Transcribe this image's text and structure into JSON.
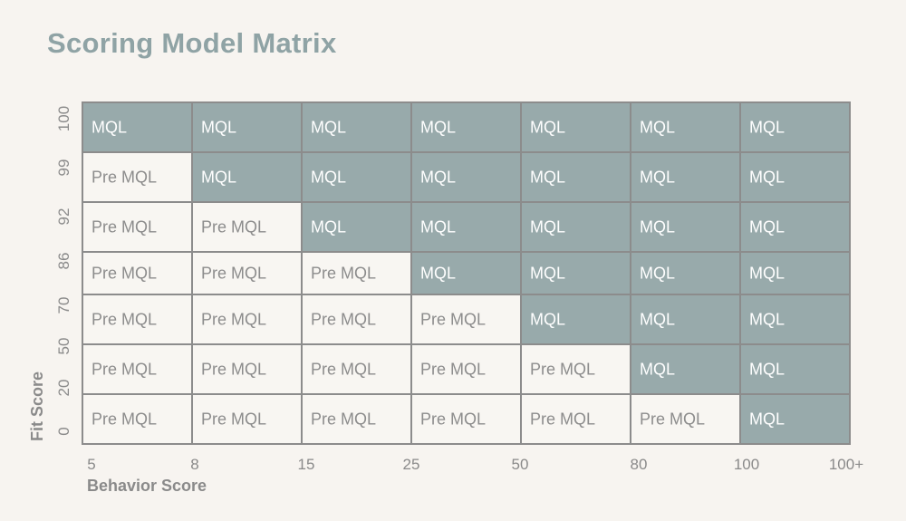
{
  "title": "Scoring Model Matrix",
  "chart_data": {
    "type": "heatmap",
    "title": "Scoring Model Matrix",
    "xlabel": "Behavior Score",
    "ylabel": "Fit Score",
    "x_ticks": [
      "5",
      "8",
      "15",
      "25",
      "50",
      "80",
      "100",
      "100+"
    ],
    "y_ticks": [
      "100",
      "99",
      "92",
      "86",
      "70",
      "50",
      "20",
      "0"
    ],
    "rows": [
      [
        "MQL",
        "MQL",
        "MQL",
        "MQL",
        "MQL",
        "MQL",
        "MQL"
      ],
      [
        "Pre MQL",
        "MQL",
        "MQL",
        "MQL",
        "MQL",
        "MQL",
        "MQL"
      ],
      [
        "Pre MQL",
        "Pre MQL",
        "MQL",
        "MQL",
        "MQL",
        "MQL",
        "MQL"
      ],
      [
        "Pre MQL",
        "Pre MQL",
        "Pre MQL",
        "MQL",
        "MQL",
        "MQL",
        "MQL"
      ],
      [
        "Pre MQL",
        "Pre MQL",
        "Pre MQL",
        "Pre MQL",
        "MQL",
        "MQL",
        "MQL"
      ],
      [
        "Pre MQL",
        "Pre MQL",
        "Pre MQL",
        "Pre MQL",
        "Pre MQL",
        "MQL",
        "MQL"
      ],
      [
        "Pre MQL",
        "Pre MQL",
        "Pre MQL",
        "Pre MQL",
        "Pre MQL",
        "Pre MQL",
        "MQL"
      ]
    ],
    "colors": {
      "MQL": "#98aaab",
      "Pre MQL": "#f8f6f2",
      "MQL_text": "#ffffff",
      "Pre MQL_text": "#8c8c8c",
      "border": "#8c8c8c"
    }
  }
}
